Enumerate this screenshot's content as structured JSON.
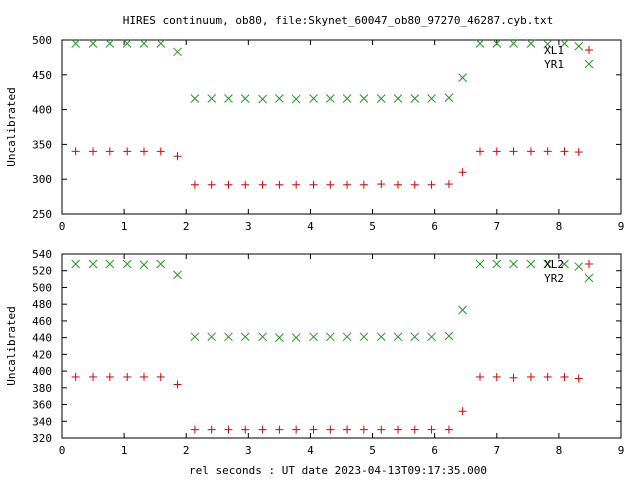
{
  "title": "HIRES continuum, ob80, file:Skynet_60047_ob80_97270_46287.cyb.txt",
  "xlabel": "rel seconds : UT date 2023-04-13T09:17:35.000",
  "colors": {
    "red": "#dd0000",
    "green": "#229922"
  },
  "chart_data": [
    {
      "type": "scatter",
      "ylabel": "Uncalibrated",
      "xlim": [
        0,
        9
      ],
      "ylim": [
        250,
        500
      ],
      "xticks": [
        0,
        1,
        2,
        3,
        4,
        5,
        6,
        7,
        8,
        9
      ],
      "yticks": [
        250,
        300,
        350,
        400,
        450,
        500
      ],
      "legend_position": "top-right",
      "series": [
        {
          "name": "XL1",
          "marker": "plus",
          "color": "#dd0000",
          "x": [
            0.22,
            0.5,
            0.77,
            1.05,
            1.32,
            1.59,
            1.86,
            2.14,
            2.41,
            2.68,
            2.95,
            3.23,
            3.5,
            3.77,
            4.05,
            4.32,
            4.59,
            4.86,
            5.14,
            5.41,
            5.68,
            5.95,
            6.23,
            6.45,
            6.73,
            7.0,
            7.27,
            7.55,
            7.82,
            8.09,
            8.32
          ],
          "y": [
            340,
            340,
            340,
            340,
            340,
            340,
            333,
            292,
            292,
            292,
            292,
            292,
            292,
            292,
            292,
            292,
            292,
            292,
            293,
            292,
            292,
            292,
            293,
            310,
            340,
            340,
            340,
            340,
            340,
            340,
            339
          ]
        },
        {
          "name": "YR1",
          "marker": "cross",
          "color": "#229922",
          "x": [
            0.22,
            0.5,
            0.77,
            1.05,
            1.32,
            1.59,
            1.86,
            2.14,
            2.41,
            2.68,
            2.95,
            3.23,
            3.5,
            3.77,
            4.05,
            4.32,
            4.59,
            4.86,
            5.14,
            5.41,
            5.68,
            5.95,
            6.23,
            6.45,
            6.73,
            7.0,
            7.27,
            7.55,
            7.82,
            8.09,
            8.32
          ],
          "y": [
            495,
            495,
            495,
            495,
            495,
            495,
            483,
            416,
            416,
            416,
            416,
            415,
            416,
            415,
            416,
            416,
            416,
            416,
            416,
            416,
            416,
            416,
            417,
            446,
            495,
            495,
            495,
            495,
            494,
            495,
            491
          ]
        }
      ]
    },
    {
      "type": "scatter",
      "ylabel": "Uncalibrated",
      "xlim": [
        0,
        9
      ],
      "ylim": [
        320,
        540
      ],
      "xticks": [
        0,
        1,
        2,
        3,
        4,
        5,
        6,
        7,
        8,
        9
      ],
      "yticks": [
        320,
        340,
        360,
        380,
        400,
        420,
        440,
        460,
        480,
        500,
        520,
        540
      ],
      "legend_position": "top-right",
      "series": [
        {
          "name": "XL2",
          "marker": "plus",
          "color": "#dd0000",
          "x": [
            0.22,
            0.5,
            0.77,
            1.05,
            1.32,
            1.59,
            1.86,
            2.14,
            2.41,
            2.68,
            2.95,
            3.23,
            3.5,
            3.77,
            4.05,
            4.32,
            4.59,
            4.86,
            5.14,
            5.41,
            5.68,
            5.95,
            6.23,
            6.45,
            6.73,
            7.0,
            7.27,
            7.55,
            7.82,
            8.09,
            8.32
          ],
          "y": [
            393,
            393,
            393,
            393,
            393,
            393,
            384,
            330,
            330,
            330,
            330,
            330,
            330,
            330,
            330,
            330,
            330,
            330,
            330,
            330,
            330,
            330,
            330,
            352,
            393,
            393,
            392,
            393,
            393,
            393,
            391
          ]
        },
        {
          "name": "YR2",
          "marker": "cross",
          "color": "#229922",
          "x": [
            0.22,
            0.5,
            0.77,
            1.05,
            1.32,
            1.59,
            1.86,
            2.14,
            2.41,
            2.68,
            2.95,
            3.23,
            3.5,
            3.77,
            4.05,
            4.32,
            4.59,
            4.86,
            5.14,
            5.41,
            5.68,
            5.95,
            6.23,
            6.45,
            6.73,
            7.0,
            7.27,
            7.55,
            7.82,
            8.09,
            8.32
          ],
          "y": [
            528,
            528,
            528,
            528,
            527,
            528,
            515,
            441,
            441,
            441,
            441,
            441,
            440,
            440,
            441,
            441,
            441,
            441,
            441,
            441,
            441,
            441,
            442,
            473,
            528,
            528,
            528,
            528,
            528,
            528,
            525
          ]
        }
      ]
    }
  ]
}
